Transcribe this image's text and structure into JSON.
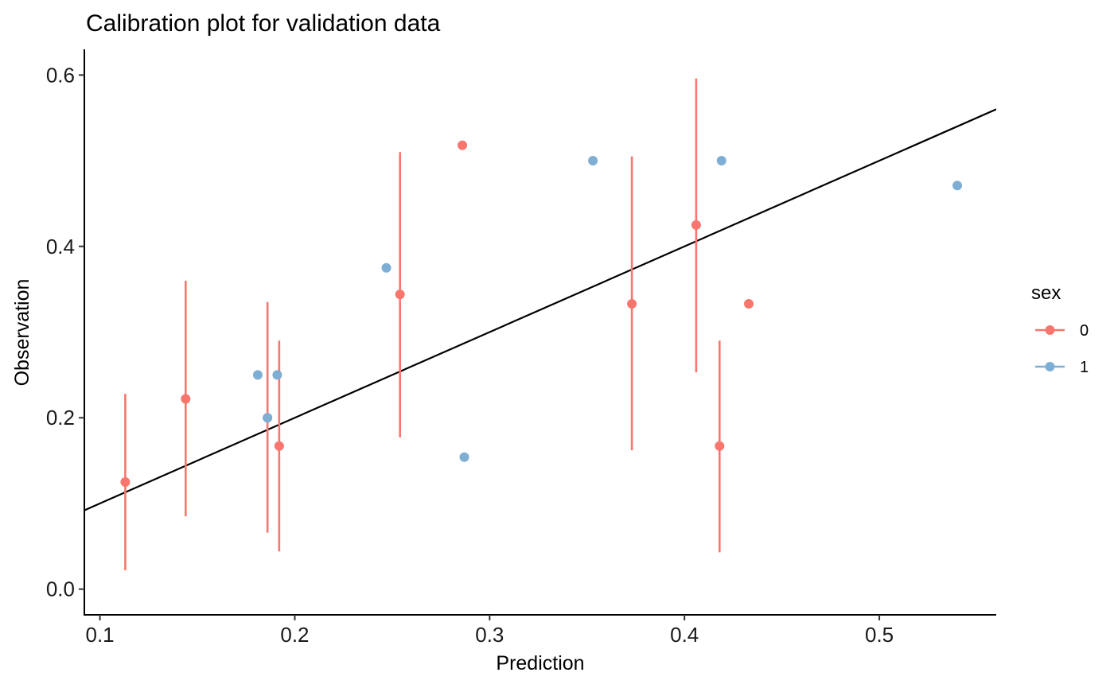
{
  "chart_data": {
    "type": "scatter",
    "title": "Calibration plot for validation data",
    "xlabel": "Prediction",
    "ylabel": "Observation",
    "xlim": [
      0.092,
      0.56
    ],
    "ylim": [
      -0.03,
      0.63
    ],
    "x_ticks": [
      0.1,
      0.2,
      0.3,
      0.4,
      0.5
    ],
    "x_tick_labels": [
      "0.1",
      "0.2",
      "0.3",
      "0.4",
      "0.5"
    ],
    "y_ticks": [
      0.0,
      0.2,
      0.4,
      0.6
    ],
    "y_tick_labels": [
      "0.0",
      "0.2",
      "0.4",
      "0.6"
    ],
    "grid": false,
    "legend": {
      "title": "sex",
      "position": "right"
    },
    "reference_line": {
      "slope": 1,
      "intercept": 0,
      "color": "#000000"
    },
    "series": [
      {
        "name": "0",
        "color": "#F8766D",
        "points": [
          {
            "x": 0.113,
            "y": 0.125,
            "lower": 0.022,
            "upper": 0.228
          },
          {
            "x": 0.144,
            "y": 0.222,
            "lower": 0.085,
            "upper": 0.36
          },
          {
            "x": 0.186,
            "y": 0.2,
            "lower": 0.066,
            "upper": 0.335
          },
          {
            "x": 0.192,
            "y": 0.167,
            "lower": 0.044,
            "upper": 0.29
          },
          {
            "x": 0.254,
            "y": 0.344,
            "lower": 0.177,
            "upper": 0.51
          },
          {
            "x": 0.286,
            "y": 0.518,
            "lower": null,
            "upper": null
          },
          {
            "x": 0.373,
            "y": 0.333,
            "lower": 0.162,
            "upper": 0.505
          },
          {
            "x": 0.406,
            "y": 0.425,
            "lower": 0.253,
            "upper": 0.596
          },
          {
            "x": 0.418,
            "y": 0.167,
            "lower": 0.043,
            "upper": 0.29
          },
          {
            "x": 0.433,
            "y": 0.333,
            "lower": null,
            "upper": null
          }
        ]
      },
      {
        "name": "1",
        "color": "#7FAED4",
        "points": [
          {
            "x": 0.181,
            "y": 0.25
          },
          {
            "x": 0.186,
            "y": 0.2
          },
          {
            "x": 0.191,
            "y": 0.25
          },
          {
            "x": 0.247,
            "y": 0.375
          },
          {
            "x": 0.287,
            "y": 0.154
          },
          {
            "x": 0.353,
            "y": 0.5
          },
          {
            "x": 0.419,
            "y": 0.5
          },
          {
            "x": 0.54,
            "y": 0.471
          }
        ]
      }
    ]
  }
}
